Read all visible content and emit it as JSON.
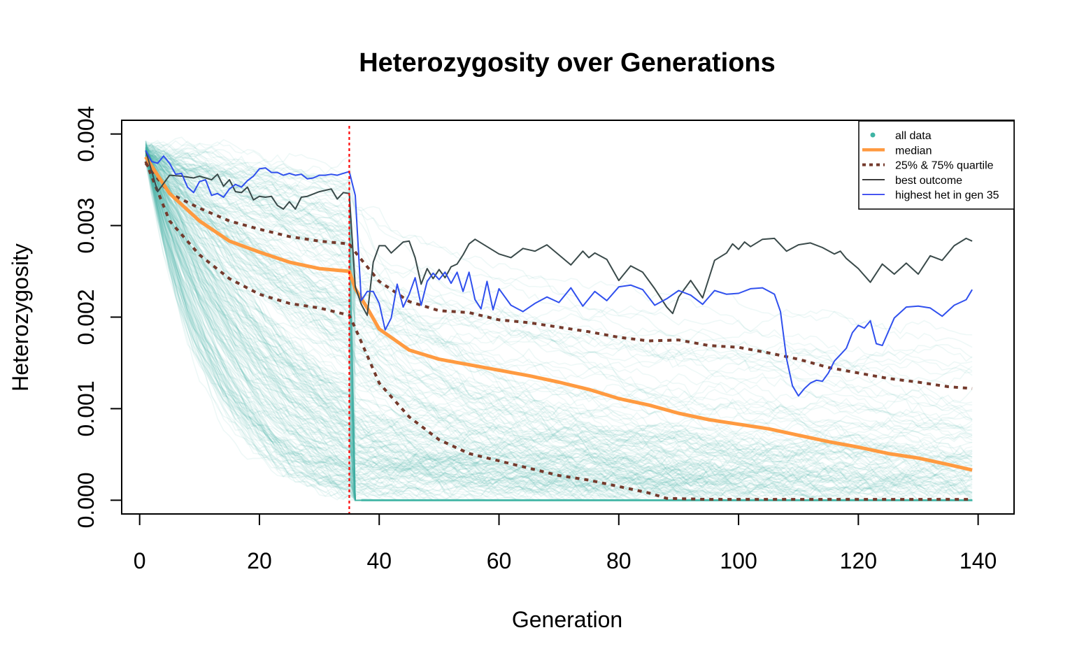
{
  "chart_data": {
    "type": "line",
    "title": "Heterozygosity over Generations",
    "xlabel": "Generation",
    "ylabel": "Heterozygosity",
    "xlim": [
      -3,
      146
    ],
    "ylim": [
      -0.00015,
      0.00415
    ],
    "x_ticks": [
      0,
      20,
      40,
      60,
      80,
      100,
      120,
      140
    ],
    "x_tick_labels": [
      "0",
      "20",
      "40",
      "60",
      "80",
      "100",
      "120",
      "140"
    ],
    "y_ticks": [
      0,
      0.001,
      0.002,
      0.003,
      0.004
    ],
    "y_tick_labels": [
      "0.000",
      "0.001",
      "0.002",
      "0.003",
      "0.004"
    ],
    "grid": false,
    "legend_position": "top-right",
    "colors": {
      "all_data": "#3fb4a4",
      "median": "#ff9a40",
      "quartile": "#743a2c",
      "best": "#3a4a4a",
      "highest": "#3050ee",
      "vline": "#ff0000"
    },
    "vline_x": 35,
    "legend": [
      {
        "label": "all data",
        "style": "dot",
        "color": "#3fb4a4"
      },
      {
        "label": "median",
        "style": "thick",
        "color": "#ff9a40"
      },
      {
        "label": "25% & 75% quartile",
        "style": "dashed",
        "color": "#743a2c"
      },
      {
        "label": "best outcome",
        "style": "line",
        "color": "#111111"
      },
      {
        "label": "highest het in gen 35",
        "style": "line",
        "color": "#2233ee"
      }
    ],
    "series": [
      {
        "name": "median",
        "x": [
          1,
          5,
          10,
          15,
          20,
          25,
          30,
          35,
          36,
          38,
          40,
          45,
          50,
          55,
          60,
          65,
          70,
          75,
          80,
          85,
          90,
          95,
          100,
          105,
          110,
          115,
          120,
          125,
          130,
          135,
          139
        ],
        "values": [
          0.00375,
          0.00335,
          0.00305,
          0.00283,
          0.00271,
          0.0026,
          0.00253,
          0.0025,
          0.00231,
          0.0021,
          0.00187,
          0.00164,
          0.00154,
          0.00148,
          0.00142,
          0.00136,
          0.00129,
          0.00121,
          0.00111,
          0.00104,
          0.00095,
          0.00088,
          0.00083,
          0.00078,
          0.00071,
          0.00064,
          0.00058,
          0.00051,
          0.00046,
          0.00039,
          0.00033
        ]
      },
      {
        "name": "25% & 75% quartile",
        "x": [
          1,
          5,
          10,
          15,
          20,
          25,
          30,
          35,
          36,
          38,
          40,
          45,
          50,
          55,
          60,
          65,
          70,
          75,
          80,
          85,
          90,
          95,
          100,
          105,
          110,
          115,
          120,
          125,
          130,
          135,
          139
        ],
        "values": [
          0.00368,
          0.00335,
          0.00319,
          0.00305,
          0.00296,
          0.00288,
          0.00283,
          0.0028,
          0.00271,
          0.00255,
          0.00239,
          0.00217,
          0.00207,
          0.00205,
          0.00197,
          0.00194,
          0.00189,
          0.00184,
          0.00178,
          0.00174,
          0.00175,
          0.00169,
          0.00167,
          0.00161,
          0.00154,
          0.00145,
          0.00139,
          0.00133,
          0.00129,
          0.00124,
          0.00122
        ]
      },
      {
        "name": "25% & 75% quartile",
        "x": [
          1,
          5,
          10,
          15,
          20,
          25,
          30,
          35,
          36,
          38,
          40,
          45,
          50,
          55,
          60,
          65,
          70,
          75,
          80,
          85,
          88,
          95,
          100,
          105,
          110,
          115,
          120,
          125,
          130,
          135,
          139
        ],
        "values": [
          0.0037,
          0.00305,
          0.00268,
          0.00242,
          0.00225,
          0.00215,
          0.0021,
          0.00202,
          0.00188,
          0.00158,
          0.00128,
          0.00091,
          0.00066,
          0.00051,
          0.00043,
          0.00035,
          0.00027,
          0.00022,
          0.00015,
          8e-05,
          2e-05,
          1e-05,
          1e-05,
          1e-05,
          1e-05,
          1e-05,
          1e-05,
          1e-05,
          1e-05,
          1e-05,
          1e-05
        ]
      },
      {
        "name": "best outcome",
        "x": [
          1,
          3,
          5,
          7,
          9,
          10,
          12,
          13,
          14,
          15,
          16,
          17,
          18,
          19,
          20,
          21,
          22,
          23,
          24,
          25,
          26,
          27,
          28,
          30,
          32,
          33,
          34,
          35,
          36,
          37,
          38,
          39,
          40,
          41,
          42,
          43,
          44,
          45,
          46,
          47,
          48,
          49,
          50,
          51,
          52,
          53,
          54,
          55,
          56,
          58,
          60,
          62,
          64,
          66,
          68,
          70,
          72,
          74,
          75,
          76,
          78,
          80,
          82,
          84,
          86,
          88,
          89,
          90,
          92,
          94,
          96,
          98,
          99,
          100,
          101,
          102,
          104,
          106,
          108,
          110,
          112,
          114,
          116,
          117,
          118,
          120,
          122,
          124,
          126,
          128,
          130,
          132,
          134,
          136,
          138,
          139
        ],
        "values": [
          0.00382,
          0.00337,
          0.00355,
          0.00354,
          0.00352,
          0.00354,
          0.0035,
          0.00356,
          0.00343,
          0.0035,
          0.00337,
          0.00336,
          0.00342,
          0.00328,
          0.00332,
          0.00331,
          0.00332,
          0.00322,
          0.00318,
          0.00326,
          0.00318,
          0.00331,
          0.00332,
          0.00337,
          0.0034,
          0.00329,
          0.00336,
          0.00335,
          0.00233,
          0.00214,
          0.00202,
          0.0026,
          0.00278,
          0.00278,
          0.0027,
          0.00276,
          0.00282,
          0.00283,
          0.00265,
          0.00236,
          0.00253,
          0.00242,
          0.00252,
          0.00243,
          0.00255,
          0.00258,
          0.00268,
          0.0028,
          0.00285,
          0.00277,
          0.00269,
          0.00265,
          0.00275,
          0.00272,
          0.00279,
          0.00268,
          0.00257,
          0.00272,
          0.00265,
          0.0027,
          0.00263,
          0.0024,
          0.00256,
          0.00249,
          0.00231,
          0.00211,
          0.00204,
          0.00222,
          0.0024,
          0.00221,
          0.00262,
          0.0027,
          0.0028,
          0.00274,
          0.00282,
          0.00277,
          0.00285,
          0.00286,
          0.00272,
          0.00279,
          0.00281,
          0.00276,
          0.00269,
          0.00272,
          0.00264,
          0.00253,
          0.00238,
          0.00258,
          0.00247,
          0.00259,
          0.00247,
          0.00267,
          0.00262,
          0.00278,
          0.00286,
          0.00283
        ]
      },
      {
        "name": "highest het in gen 35",
        "x": [
          1,
          2,
          3,
          4,
          5,
          6,
          7,
          8,
          9,
          10,
          11,
          12,
          13,
          14,
          15,
          16,
          17,
          18,
          19,
          20,
          21,
          22,
          23,
          24,
          25,
          26,
          27,
          28,
          29,
          30,
          31,
          32,
          33,
          34,
          35,
          36,
          37,
          38,
          39,
          40,
          41,
          42,
          43,
          44,
          45,
          46,
          47,
          48,
          49,
          50,
          51,
          52,
          53,
          54,
          55,
          56,
          57,
          58,
          59,
          60,
          62,
          64,
          66,
          68,
          70,
          72,
          74,
          76,
          78,
          80,
          82,
          84,
          86,
          88,
          90,
          92,
          94,
          96,
          98,
          100,
          102,
          104,
          106,
          107,
          108,
          109,
          110,
          111,
          112,
          113,
          114,
          115,
          116,
          117,
          118,
          119,
          120,
          121,
          122,
          123,
          124,
          126,
          128,
          130,
          132,
          134,
          136,
          138,
          139
        ],
        "values": [
          0.00382,
          0.0037,
          0.00368,
          0.00376,
          0.00368,
          0.00356,
          0.00357,
          0.00342,
          0.00336,
          0.00348,
          0.0035,
          0.00333,
          0.00335,
          0.00331,
          0.0034,
          0.00345,
          0.00342,
          0.00349,
          0.00354,
          0.00362,
          0.00363,
          0.00358,
          0.00358,
          0.00355,
          0.00357,
          0.00355,
          0.00356,
          0.00351,
          0.00352,
          0.00355,
          0.00355,
          0.00356,
          0.00355,
          0.00357,
          0.00359,
          0.00333,
          0.00218,
          0.00228,
          0.00228,
          0.00215,
          0.00186,
          0.00199,
          0.00236,
          0.00211,
          0.00225,
          0.00243,
          0.00213,
          0.00239,
          0.00248,
          0.00241,
          0.00249,
          0.00237,
          0.00249,
          0.00228,
          0.00249,
          0.00219,
          0.00209,
          0.00239,
          0.00208,
          0.00231,
          0.00213,
          0.00206,
          0.00215,
          0.00222,
          0.00216,
          0.00232,
          0.00212,
          0.00228,
          0.00218,
          0.00233,
          0.00235,
          0.0023,
          0.00213,
          0.0022,
          0.00229,
          0.00224,
          0.00214,
          0.00229,
          0.00225,
          0.00226,
          0.00231,
          0.00232,
          0.00225,
          0.00206,
          0.00155,
          0.00125,
          0.00114,
          0.00122,
          0.00128,
          0.00131,
          0.0013,
          0.00139,
          0.00152,
          0.00159,
          0.00166,
          0.00183,
          0.00191,
          0.00188,
          0.00196,
          0.00171,
          0.00169,
          0.00199,
          0.00211,
          0.00212,
          0.0021,
          0.00201,
          0.00213,
          0.00219,
          0.0023
        ]
      }
    ]
  }
}
